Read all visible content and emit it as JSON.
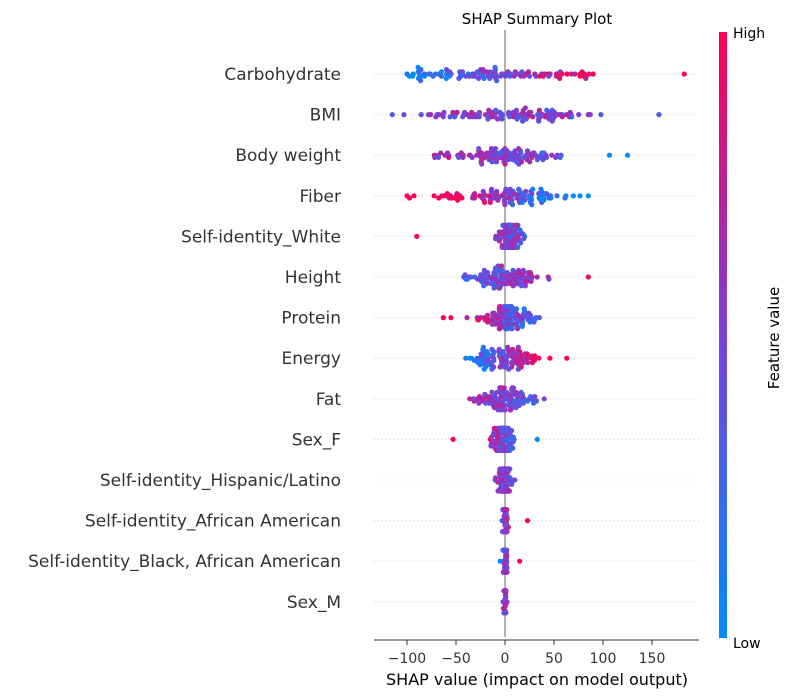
{
  "chart_data": {
    "type": "scatter",
    "subtype": "shap-beeswarm",
    "title": "SHAP Summary Plot",
    "xlabel": "SHAP value (impact on model output)",
    "xlim": [
      -132,
      197
    ],
    "xticks": [
      -100,
      -50,
      0,
      50,
      100,
      150
    ],
    "xtick_labels": [
      "−100",
      "−50",
      "0",
      "50",
      "100",
      "150"
    ],
    "colorbar": {
      "title": "Feature value",
      "high_label": "High",
      "low_label": "Low",
      "low_color": "#008bfb",
      "high_color": "#ff0052"
    },
    "grid": false,
    "features": [
      {
        "name": "Carbohydrate",
        "min": -100,
        "max": 183,
        "center": 0,
        "spread": 55,
        "colorTrend": 1
      },
      {
        "name": "BMI",
        "min": -115,
        "max": 157,
        "center": 0,
        "spread": 45,
        "colorTrend": 0
      },
      {
        "name": "Body weight",
        "min": -72,
        "max": 125,
        "center": 0,
        "spread": 28,
        "colorTrend": -0.3
      },
      {
        "name": "Fiber",
        "min": -100,
        "max": 85,
        "center": 0,
        "spread": 30,
        "colorTrend": -1
      },
      {
        "name": "Self-identity_White",
        "min": -90,
        "max": 20,
        "center": 5,
        "spread": 7,
        "colorTrend": -1
      },
      {
        "name": "Height",
        "min": -42,
        "max": 85,
        "center": 0,
        "spread": 18,
        "colorTrend": 0.3
      },
      {
        "name": "Protein",
        "min": -63,
        "max": 35,
        "center": 0,
        "spread": 16,
        "colorTrend": -0.6
      },
      {
        "name": "Energy",
        "min": -40,
        "max": 63,
        "center": 0,
        "spread": 18,
        "colorTrend": 0.8
      },
      {
        "name": "Fat",
        "min": -36,
        "max": 40,
        "center": 0,
        "spread": 14,
        "colorTrend": -0.2
      },
      {
        "name": "Sex_F",
        "min": -53,
        "max": 33,
        "center": -3,
        "spread": 6,
        "colorTrend": -1
      },
      {
        "name": "Self-identity_Hispanic/Latino",
        "min": -10,
        "max": 10,
        "center": 0,
        "spread": 3,
        "colorTrend": 0
      },
      {
        "name": "Self-identity_African American",
        "min": -3,
        "max": 23,
        "center": 0,
        "spread": 1,
        "colorTrend": 1
      },
      {
        "name": "Self-identity_Black, African American",
        "min": -5,
        "max": 15,
        "center": 0,
        "spread": 1,
        "colorTrend": 1
      },
      {
        "name": "Sex_M",
        "min": -2,
        "max": 2,
        "center": 0,
        "spread": 0.5,
        "colorTrend": 0
      }
    ]
  }
}
